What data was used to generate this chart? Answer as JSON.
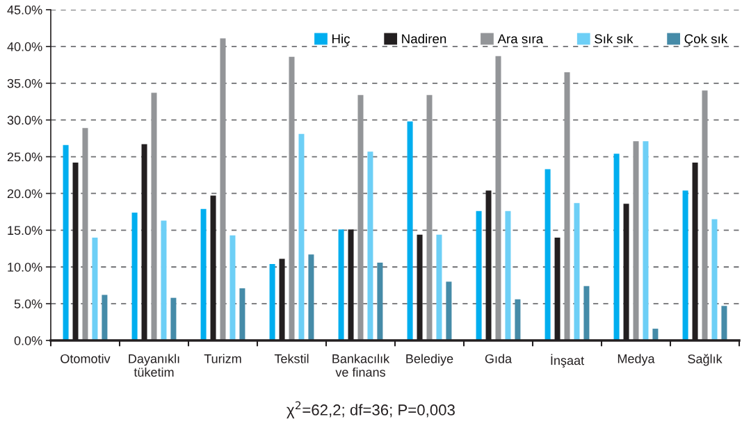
{
  "chart_data": {
    "type": "bar",
    "categories": [
      "Otomotiv",
      "Dayanıklı\ntüketim",
      "Turizm",
      "Tekstil",
      "Bankacılık\nve finans",
      "Belediye",
      "Gıda",
      "İnşaat",
      "Medya",
      "Sağlık"
    ],
    "series": [
      {
        "name": "Hiç",
        "color": "#00aeef",
        "values": [
          26.6,
          17.4,
          17.9,
          10.4,
          15.1,
          29.8,
          17.6,
          23.3,
          25.4,
          20.4
        ]
      },
      {
        "name": "Nadiren",
        "color": "#231f20",
        "values": [
          24.2,
          26.7,
          19.7,
          11.1,
          15.1,
          14.4,
          20.4,
          14.0,
          18.6,
          24.2
        ]
      },
      {
        "name": "Ara sıra",
        "color": "#939598",
        "values": [
          28.9,
          33.7,
          41.1,
          38.6,
          33.4,
          33.4,
          38.7,
          36.5,
          27.1,
          34.0
        ]
      },
      {
        "name": "Sık sık",
        "color": "#6dcff6",
        "values": [
          14.0,
          16.3,
          14.3,
          28.1,
          25.7,
          14.4,
          17.6,
          18.7,
          27.1,
          16.5
        ]
      },
      {
        "name": "Çok sık",
        "color": "#458ba8",
        "values": [
          6.2,
          5.8,
          7.1,
          11.7,
          10.6,
          8.0,
          5.6,
          7.4,
          1.6,
          4.7
        ]
      }
    ],
    "ylim": [
      0,
      45
    ],
    "yticks": [
      {
        "value": 0,
        "label": "0.0%"
      },
      {
        "value": 5,
        "label": "5.0%"
      },
      {
        "value": 10,
        "label": "10.0%"
      },
      {
        "value": 15,
        "label": "15.0%"
      },
      {
        "value": 20,
        "label": "20.0%"
      },
      {
        "value": 25,
        "label": "25.0%"
      },
      {
        "value": 30,
        "label": "30.0%"
      },
      {
        "value": 35,
        "label": "35.0%"
      },
      {
        "value": 40,
        "label": "40.0%"
      },
      {
        "value": 45,
        "label": "45.0%"
      }
    ],
    "grid": "y",
    "legend": "top right",
    "annotations": [
      "χ$^{2}$=62,2; df=36; P=0,003"
    ]
  }
}
